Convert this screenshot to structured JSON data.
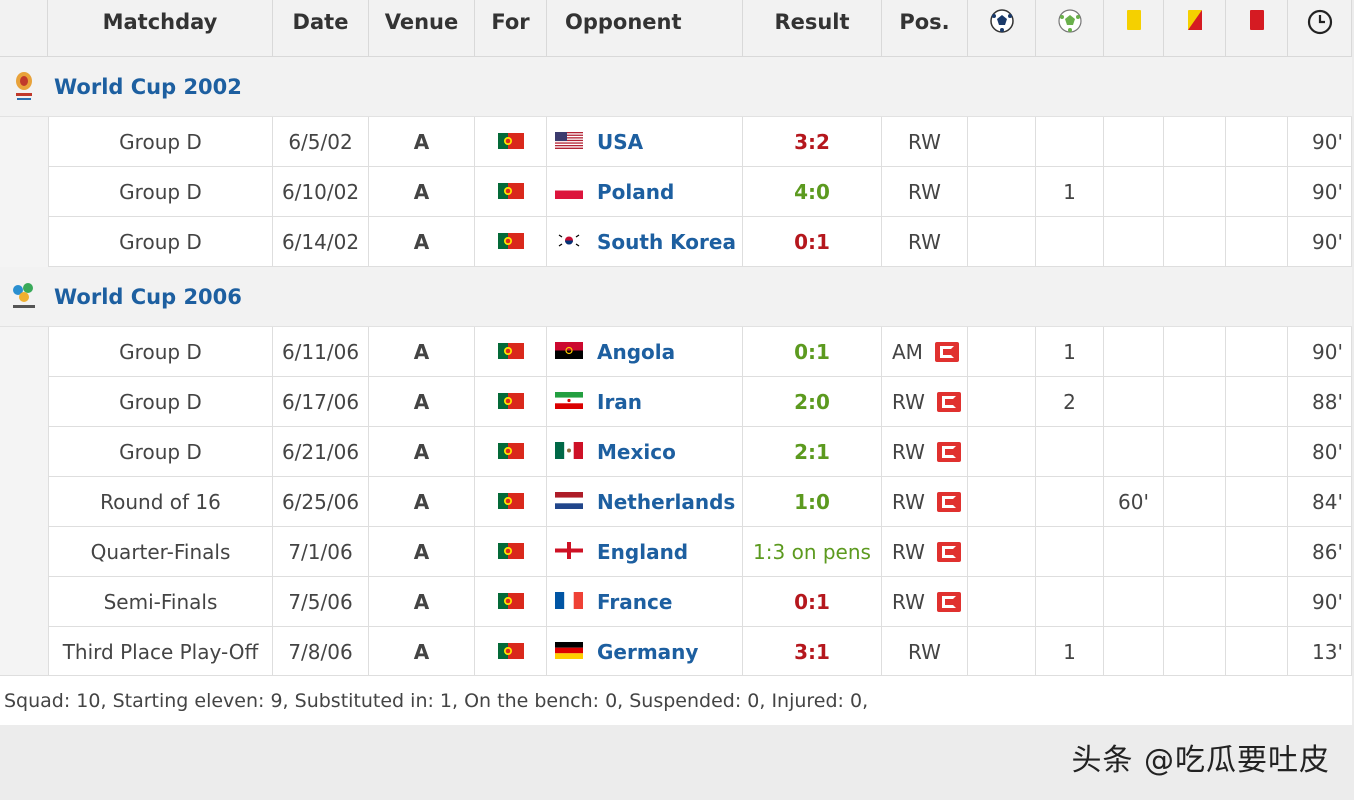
{
  "headers": {
    "matchday": "Matchday",
    "date": "Date",
    "venue": "Venue",
    "for": "For",
    "opponent": "Opponent",
    "result": "Result",
    "pos": "Pos.",
    "icons": [
      "goals-icon",
      "assists-icon",
      "yellow-card-icon",
      "second-yellow-icon",
      "red-card-icon",
      "minutes-icon"
    ]
  },
  "competitions": [
    {
      "title": "World Cup 2002",
      "logo": "world-cup-2002-logo",
      "rows": [
        {
          "matchday": "Group D",
          "date": "6/5/02",
          "venue": "A",
          "for_flag": "portugal",
          "opponent": "USA",
          "opp_flag": "usa",
          "result": "3:2",
          "result_type": "loss",
          "pos": "RW",
          "captain": false,
          "goals": "",
          "assists": "",
          "yellow": "",
          "second_yellow": "",
          "red": "",
          "minutes": "90'"
        },
        {
          "matchday": "Group D",
          "date": "6/10/02",
          "venue": "A",
          "for_flag": "portugal",
          "opponent": "Poland",
          "opp_flag": "poland",
          "result": "4:0",
          "result_type": "win",
          "pos": "RW",
          "captain": false,
          "goals": "",
          "assists": "1",
          "yellow": "",
          "second_yellow": "",
          "red": "",
          "minutes": "90'"
        },
        {
          "matchday": "Group D",
          "date": "6/14/02",
          "venue": "A",
          "for_flag": "portugal",
          "opponent": "South Korea",
          "opp_flag": "south-korea",
          "result": "0:1",
          "result_type": "loss",
          "pos": "RW",
          "captain": false,
          "goals": "",
          "assists": "",
          "yellow": "",
          "second_yellow": "",
          "red": "",
          "minutes": "90'"
        }
      ]
    },
    {
      "title": "World Cup 2006",
      "logo": "world-cup-2006-logo",
      "rows": [
        {
          "matchday": "Group D",
          "date": "6/11/06",
          "venue": "A",
          "for_flag": "portugal",
          "opponent": "Angola",
          "opp_flag": "angola",
          "result": "0:1",
          "result_type": "win",
          "pos": "AM",
          "captain": true,
          "goals": "",
          "assists": "1",
          "yellow": "",
          "second_yellow": "",
          "red": "",
          "minutes": "90'"
        },
        {
          "matchday": "Group D",
          "date": "6/17/06",
          "venue": "A",
          "for_flag": "portugal",
          "opponent": "Iran",
          "opp_flag": "iran",
          "result": "2:0",
          "result_type": "win",
          "pos": "RW",
          "captain": true,
          "goals": "",
          "assists": "2",
          "yellow": "",
          "second_yellow": "",
          "red": "",
          "minutes": "88'"
        },
        {
          "matchday": "Group D",
          "date": "6/21/06",
          "venue": "A",
          "for_flag": "portugal",
          "opponent": "Mexico",
          "opp_flag": "mexico",
          "result": "2:1",
          "result_type": "win",
          "pos": "RW",
          "captain": true,
          "goals": "",
          "assists": "",
          "yellow": "",
          "second_yellow": "",
          "red": "",
          "minutes": "80'"
        },
        {
          "matchday": "Round of 16",
          "date": "6/25/06",
          "venue": "A",
          "for_flag": "portugal",
          "opponent": "Netherlands",
          "opp_flag": "netherlands",
          "result": "1:0",
          "result_type": "win",
          "pos": "RW",
          "captain": true,
          "goals": "",
          "assists": "",
          "yellow": "60'",
          "second_yellow": "",
          "red": "",
          "minutes": "84'"
        },
        {
          "matchday": "Quarter-Finals",
          "date": "7/1/06",
          "venue": "A",
          "for_flag": "portugal",
          "opponent": "England",
          "opp_flag": "england",
          "result": "1:3 on pens",
          "result_type": "pens",
          "pos": "RW",
          "captain": true,
          "goals": "",
          "assists": "",
          "yellow": "",
          "second_yellow": "",
          "red": "",
          "minutes": "86'"
        },
        {
          "matchday": "Semi-Finals",
          "date": "7/5/06",
          "venue": "A",
          "for_flag": "portugal",
          "opponent": "France",
          "opp_flag": "france",
          "result": "0:1",
          "result_type": "loss",
          "pos": "RW",
          "captain": true,
          "goals": "",
          "assists": "",
          "yellow": "",
          "second_yellow": "",
          "red": "",
          "minutes": "90'"
        },
        {
          "matchday": "Third Place Play-Off",
          "date": "7/8/06",
          "venue": "A",
          "for_flag": "portugal",
          "opponent": "Germany",
          "opp_flag": "germany",
          "result": "3:1",
          "result_type": "loss",
          "pos": "RW",
          "captain": false,
          "goals": "",
          "assists": "1",
          "yellow": "",
          "second_yellow": "",
          "red": "",
          "minutes": "13'"
        }
      ]
    }
  ],
  "footer": "Squad: 10, Starting eleven: 9, Substituted in: 1, On the bench: 0, Suspended: 0, Injured: 0,",
  "watermark": "头条 @吃瓜要吐皮",
  "colors": {
    "link": "#1d5fa0",
    "win": "#5c9a1f",
    "loss": "#b5171d",
    "captain": "#e0312f"
  }
}
